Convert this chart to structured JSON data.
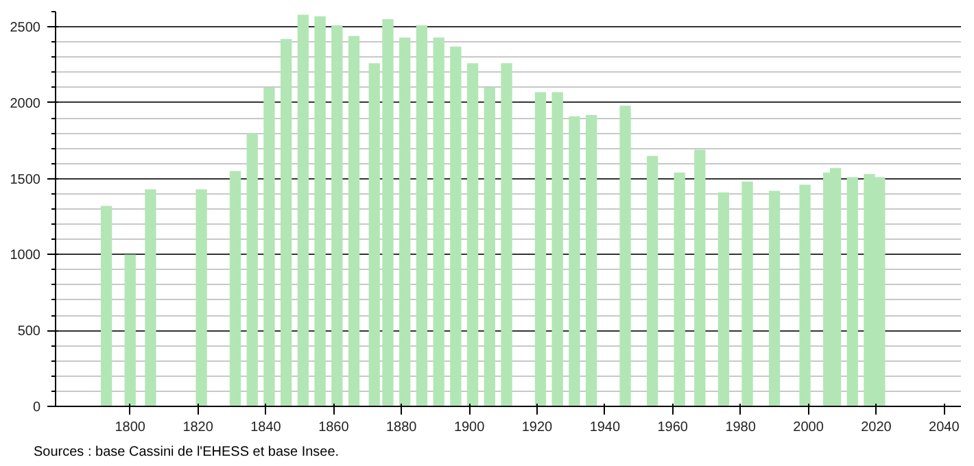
{
  "chart_data": {
    "type": "bar",
    "color": "#b3e6b5",
    "x": [
      1793,
      1800,
      1806,
      1821,
      1831,
      1836,
      1841,
      1846,
      1851,
      1856,
      1861,
      1866,
      1872,
      1876,
      1881,
      1886,
      1891,
      1896,
      1901,
      1906,
      1911,
      1921,
      1926,
      1931,
      1936,
      1946,
      1954,
      1962,
      1968,
      1975,
      1982,
      1990,
      1999,
      2006,
      2008,
      2013,
      2018,
      2021
    ],
    "values": [
      1320,
      1000,
      1430,
      1430,
      1550,
      1800,
      2100,
      2420,
      2580,
      2570,
      2510,
      2440,
      2260,
      2550,
      2430,
      2510,
      2430,
      2370,
      2260,
      2100,
      2260,
      2070,
      2070,
      1910,
      1920,
      1980,
      1650,
      1540,
      1690,
      1410,
      1480,
      1420,
      1460,
      1540,
      1570,
      1510,
      1530,
      1510
    ],
    "xlim": [
      1778,
      2045
    ],
    "xticks": [
      1800,
      1820,
      1840,
      1860,
      1880,
      1900,
      1920,
      1940,
      1960,
      1980,
      2000,
      2020,
      2040
    ],
    "ylim": [
      0,
      2600
    ],
    "yticks": [
      0,
      500,
      1000,
      1500,
      2000,
      2500
    ],
    "grid": "y",
    "annotations": [
      "Sources : base Cassini de l'EHESS et base Insee."
    ]
  }
}
